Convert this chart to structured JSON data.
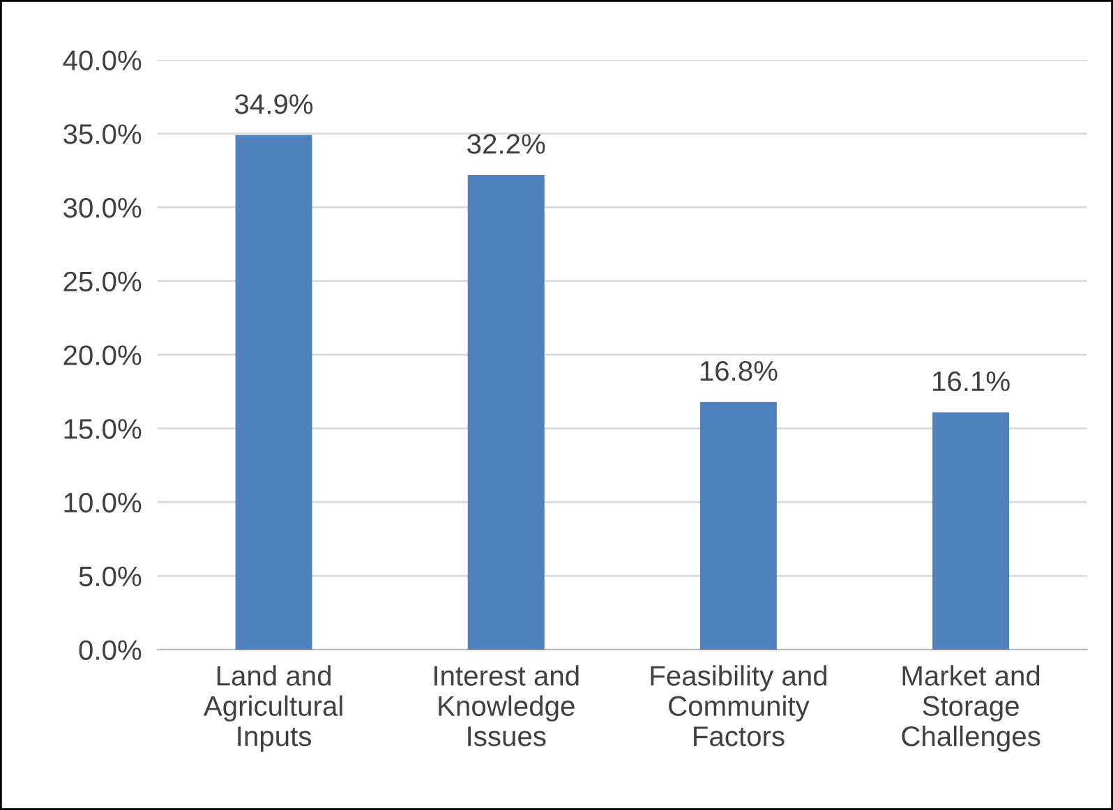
{
  "chart_data": {
    "type": "bar",
    "categories": [
      "Land and\nAgricultural\nInputs",
      "Interest and\nKnowledge\nIssues",
      "Feasibility and\nCommunity\nFactors",
      "Market and\nStorage\nChallenges"
    ],
    "values": [
      34.9,
      32.2,
      16.8,
      16.1
    ],
    "value_labels": [
      "34.9%",
      "32.2%",
      "16.8%",
      "16.1%"
    ],
    "color": "#4f81bd",
    "ylim": [
      0,
      40
    ],
    "yticks": [
      {
        "value": 0,
        "label": "0.0%"
      },
      {
        "value": 5,
        "label": "5.0%"
      },
      {
        "value": 10,
        "label": "10.0%"
      },
      {
        "value": 15,
        "label": "15.0%"
      },
      {
        "value": 20,
        "label": "20.0%"
      },
      {
        "value": 25,
        "label": "25.0%"
      },
      {
        "value": 30,
        "label": "30.0%"
      },
      {
        "value": 35,
        "label": "35.0%"
      },
      {
        "value": 40,
        "label": "40.0%"
      }
    ],
    "grid": "y"
  }
}
